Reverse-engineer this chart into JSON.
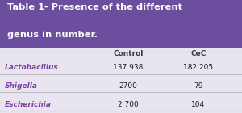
{
  "title_line1": "Table 1- Presence of the different",
  "title_line2": "genus in number.",
  "title_bg": "#6b4f9e",
  "title_color": "#ffffff",
  "table_bg": "#e8e4f0",
  "header_col1": "Control",
  "header_col2": "CeC",
  "rows": [
    {
      "label": "Lactobacillus",
      "control": "137 938",
      "cec": "182 205"
    },
    {
      "label": "Shigella",
      "control": "2700",
      "cec": "79"
    },
    {
      "label": "Escherichia",
      "control": "2 700",
      "cec": "104"
    }
  ],
  "label_color": "#7b3fa0",
  "header_color": "#3a3a3a",
  "data_color": "#1a1a1a",
  "line_color": "#aaaaaa"
}
